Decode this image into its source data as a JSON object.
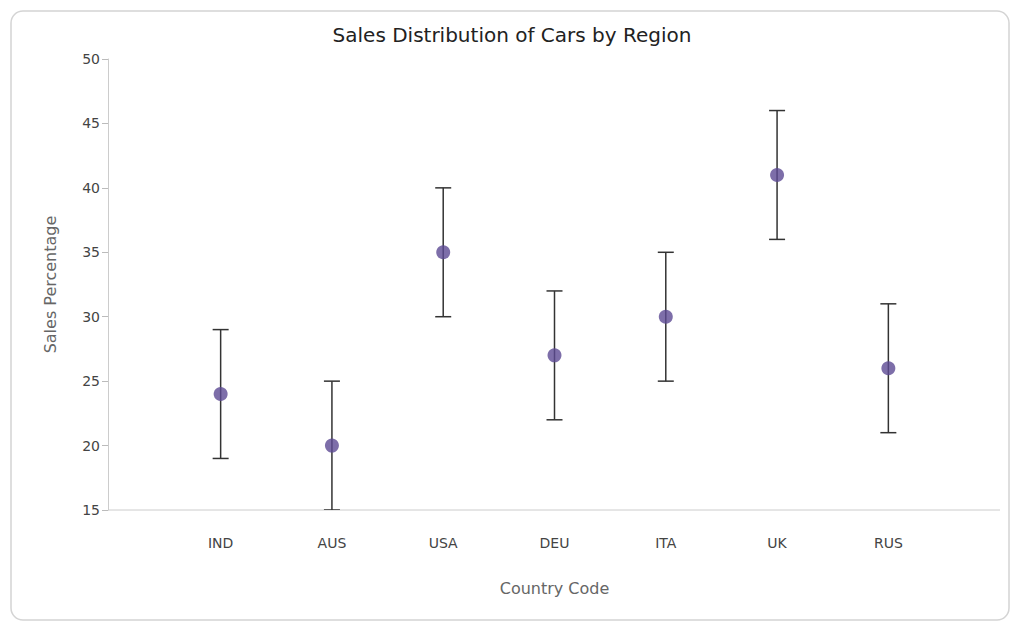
{
  "chart_data": {
    "type": "scatter",
    "title": "Sales Distribution of Cars by Region",
    "x_label": "Country Code",
    "y_label": "Sales Percentage",
    "categories": [
      "IND",
      "AUS",
      "USA",
      "DEU",
      "ITA",
      "UK",
      "RUS"
    ],
    "values": [
      24,
      20,
      35,
      27,
      30,
      41,
      26
    ],
    "error": [
      5,
      5,
      5,
      5,
      5,
      5,
      5
    ],
    "color": "#5c4a93",
    "marker": "circle",
    "ylim": [
      15,
      50
    ],
    "yticks": [
      15,
      20,
      25,
      30,
      35,
      40,
      45,
      50
    ],
    "grid": false
  }
}
